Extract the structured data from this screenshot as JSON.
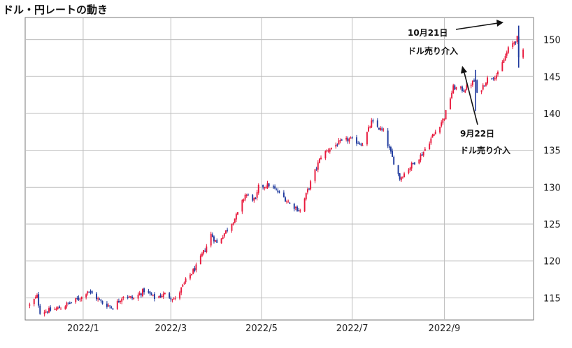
{
  "chart_data": {
    "type": "line",
    "title": "ドル・円レートの動き",
    "x_axis": {
      "start": "2021-11-23",
      "end": "2022-10-31",
      "ticks": [
        {
          "date": "2022-01-01",
          "label": "2022/1"
        },
        {
          "date": "2022-03-01",
          "label": "2022/3"
        },
        {
          "date": "2022-05-01",
          "label": "2022/5"
        },
        {
          "date": "2022-07-01",
          "label": "2022/7"
        },
        {
          "date": "2022-09-01",
          "label": "2022/9"
        }
      ]
    },
    "y_axis": {
      "min": 112,
      "max": 153,
      "ticks": [
        115,
        120,
        125,
        130,
        135,
        140,
        145,
        150
      ],
      "position": "right"
    },
    "grid": true,
    "candle_colors": {
      "up": "#e8193c",
      "down": "#1f3a9e"
    },
    "series": [
      {
        "x": [
          "2021-11-26",
          "2021-12-01",
          "2021-12-03",
          "2021-12-10",
          "2021-12-17",
          "2021-12-24",
          "2021-12-31",
          "2022-01-04",
          "2022-01-07",
          "2022-01-14",
          "2022-01-21",
          "2022-01-28",
          "2022-02-04",
          "2022-02-11",
          "2022-02-18",
          "2022-02-25",
          "2022-03-04",
          "2022-03-11",
          "2022-03-18",
          "2022-03-25",
          "2022-03-28",
          "2022-04-01",
          "2022-04-08",
          "2022-04-15",
          "2022-04-20",
          "2022-04-27",
          "2022-04-29",
          "2022-05-06",
          "2022-05-13",
          "2022-05-20",
          "2022-05-27",
          "2022-06-03",
          "2022-06-10",
          "2022-06-15",
          "2022-06-22",
          "2022-06-29",
          "2022-07-08",
          "2022-07-14",
          "2022-07-22",
          "2022-07-29",
          "2022-08-02",
          "2022-08-10",
          "2022-08-17",
          "2022-08-24",
          "2022-09-01",
          "2022-09-07",
          "2022-09-14",
          "2022-09-22",
          "2022-09-23",
          "2022-09-30",
          "2022-10-07",
          "2022-10-14",
          "2022-10-20",
          "2022-10-21",
          "2022-10-24"
        ],
        "y": [
          114.0,
          115.2,
          113.1,
          113.3,
          113.7,
          114.4,
          115.1,
          116.0,
          115.5,
          114.3,
          113.7,
          115.3,
          114.9,
          116.0,
          115.0,
          115.5,
          114.8,
          117.3,
          119.2,
          122.0,
          123.6,
          122.4,
          124.3,
          126.4,
          129.0,
          128.2,
          130.0,
          130.3,
          129.2,
          127.8,
          126.8,
          130.6,
          134.2,
          135.1,
          136.0,
          136.5,
          135.9,
          138.8,
          137.5,
          133.4,
          131.2,
          133.0,
          134.5,
          136.9,
          139.5,
          143.5,
          143.2,
          144.5,
          142.5,
          144.7,
          145.3,
          148.7,
          150.2,
          147.3,
          148.6
        ]
      }
    ],
    "annotations": [
      {
        "label_line1": "10月21日",
        "label_line2": "ドル売り介入"
      },
      {
        "label_line1": "9月22日",
        "label_line2": "ドル売り介入"
      }
    ]
  }
}
